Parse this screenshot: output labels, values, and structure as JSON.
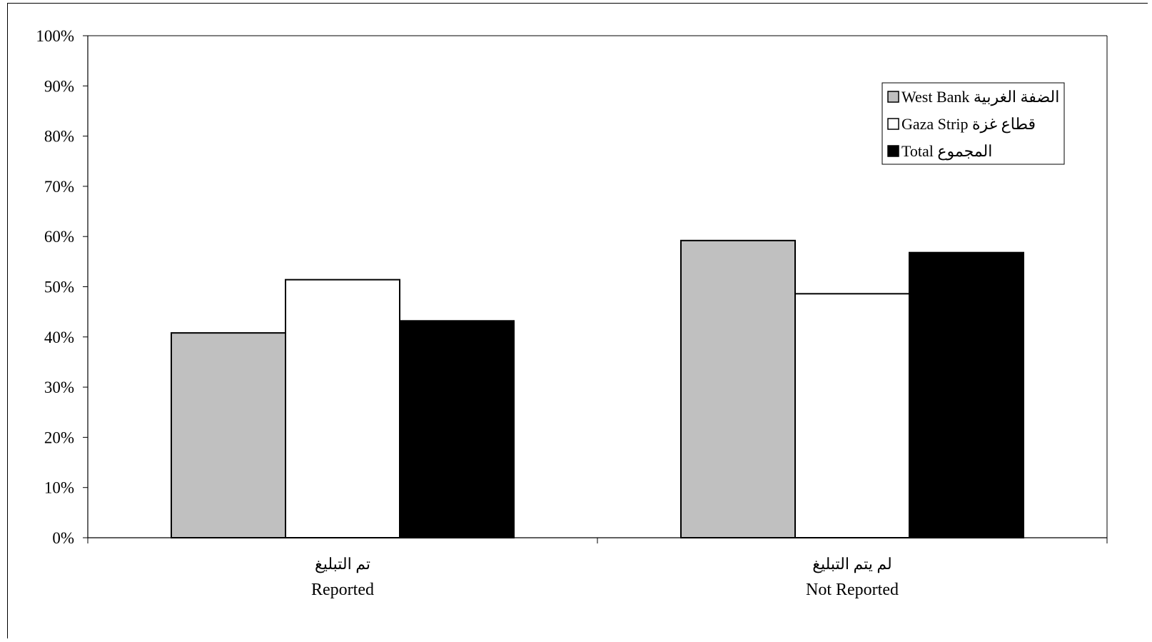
{
  "chart_data": {
    "type": "bar",
    "categories": [
      {
        "ar": "تم التبليغ",
        "en": "Reported"
      },
      {
        "ar": "لم يتم التبليغ",
        "en": "Not Reported"
      }
    ],
    "series": [
      {
        "name": "West Bank الضفة الغربية",
        "color": "#c0c0c0",
        "values": [
          40.8,
          59.2
        ]
      },
      {
        "name": "Gaza Strip قطاع غزة",
        "color": "#ffffff",
        "values": [
          51.4,
          48.6
        ]
      },
      {
        "name": "Total المجموع",
        "color": "#000000",
        "values": [
          43.2,
          56.8
        ]
      }
    ],
    "yticks": [
      "0%",
      "10%",
      "20%",
      "30%",
      "40%",
      "50%",
      "60%",
      "70%",
      "80%",
      "90%",
      "100%"
    ],
    "ylim": [
      0,
      100
    ],
    "grid": false,
    "legend_position": "top-right"
  }
}
